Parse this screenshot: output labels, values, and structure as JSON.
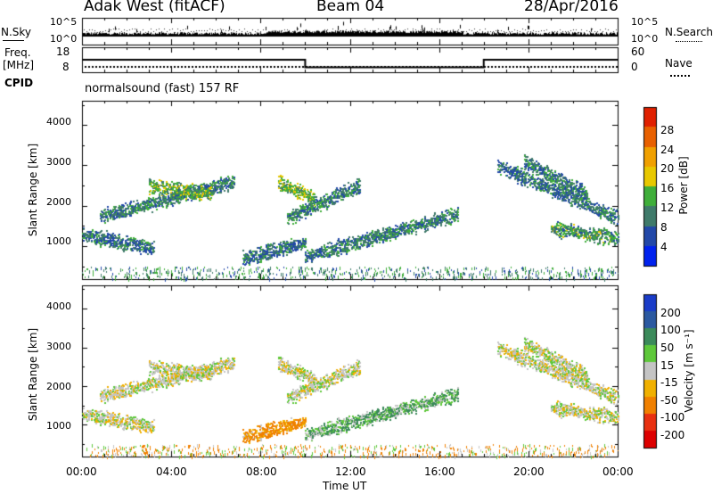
{
  "header": {
    "station": "Adak West (fitACF)",
    "beam": "Beam 04",
    "date": "28/Apr/2016"
  },
  "panels": {
    "nsky": {
      "label": "N.Sky",
      "ticks_left": [
        "10^5",
        "10^0"
      ],
      "ticks_right": [
        "10^5",
        "10^0"
      ],
      "right_label": "N.Search"
    },
    "freq": {
      "label_line1": "Freq.",
      "label_line2": "[MHz]",
      "label_line3": "CPID",
      "ticks_left": [
        "18",
        "8"
      ],
      "ticks_right": [
        "60",
        "0"
      ],
      "right_label": "Nave"
    },
    "cpid": {
      "text": "normalsound (fast) 157 RF"
    }
  },
  "x_axis": {
    "label": "Time UT",
    "ticks": [
      "00:00",
      "04:00",
      "08:00",
      "12:00",
      "16:00",
      "20:00",
      "00:00"
    ]
  },
  "y_axis": {
    "label": "Slant Range [km]",
    "ticks": [
      "1000",
      "2000",
      "3000",
      "4000"
    ]
  },
  "colorbars": {
    "power": {
      "label": "Power [dB]",
      "ticks": [
        "4",
        "8",
        "12",
        "16",
        "20",
        "24",
        "28"
      ],
      "colors": [
        "#0022ee",
        "#2248a8",
        "#3f7a6a",
        "#3fae3a",
        "#e8c800",
        "#f0a000",
        "#e86000",
        "#e02000"
      ]
    },
    "velocity": {
      "label": "Velocity [m s⁻¹]",
      "ticks": [
        "200",
        "100",
        "50",
        "15",
        "-15",
        "-50",
        "-100",
        "-200"
      ],
      "colors": [
        "#1a3cc8",
        "#2b59a0",
        "#3b8a5a",
        "#5ec83a",
        "#c4c4c4",
        "#f0b000",
        "#f08000",
        "#e83010",
        "#dd0000"
      ]
    }
  },
  "chart_data": [
    {
      "type": "line",
      "title": "Adak West (fitACF) Beam 04 28/Apr/2016",
      "x": [
        "00:00",
        "04:00",
        "08:00",
        "12:00",
        "16:00",
        "20:00",
        "00:00"
      ],
      "series": [
        {
          "name": "Freq. [MHz]",
          "values": [
            13,
            13,
            13,
            10,
            10,
            13,
            13
          ]
        }
      ],
      "ylabel": "Freq. [MHz]",
      "ylim": [
        8,
        18
      ]
    },
    {
      "type": "heatmap",
      "xlabel": "Time UT",
      "ylabel": "Slant Range [km]",
      "xlim": [
        0,
        24
      ],
      "ylim": [
        180,
        4600
      ],
      "legend": "Power [dB]",
      "regions": [
        {
          "start_hour": 0.0,
          "end_hour": 3.2,
          "range_start": 1300,
          "range_end": 950,
          "value": 9
        },
        {
          "start_hour": 0.8,
          "end_hour": 6.8,
          "range_start": 1750,
          "range_end": 2600,
          "value": 10
        },
        {
          "start_hour": 3.0,
          "end_hour": 5.8,
          "range_start": 2500,
          "range_end": 2300,
          "value": 14
        },
        {
          "start_hour": 7.2,
          "end_hour": 10.0,
          "range_start": 700,
          "range_end": 1100,
          "value": 9
        },
        {
          "start_hour": 8.8,
          "end_hour": 10.4,
          "range_start": 2600,
          "range_end": 2200,
          "value": 15
        },
        {
          "start_hour": 9.2,
          "end_hour": 12.4,
          "range_start": 1700,
          "range_end": 2500,
          "value": 10
        },
        {
          "start_hour": 10.0,
          "end_hour": 16.8,
          "range_start": 750,
          "range_end": 1800,
          "value": 10
        },
        {
          "start_hour": 18.6,
          "end_hour": 24.0,
          "range_start": 3000,
          "range_end": 1700,
          "value": 9
        },
        {
          "start_hour": 19.8,
          "end_hour": 22.6,
          "range_start": 3100,
          "range_end": 2300,
          "value": 9
        },
        {
          "start_hour": 21.0,
          "end_hour": 24.0,
          "range_start": 1450,
          "range_end": 1200,
          "value": 12
        }
      ]
    },
    {
      "type": "heatmap",
      "xlabel": "Time UT",
      "ylabel": "Slant Range [km]",
      "xlim": [
        0,
        24
      ],
      "ylim": [
        180,
        4600
      ],
      "legend": "Velocity [m s⁻¹]",
      "regions": [
        {
          "start_hour": 0.0,
          "end_hour": 3.2,
          "range_start": 1300,
          "range_end": 950,
          "value": 0
        },
        {
          "start_hour": 0.8,
          "end_hour": 6.8,
          "range_start": 1750,
          "range_end": 2600,
          "value": 0
        },
        {
          "start_hour": 3.0,
          "end_hour": 5.8,
          "range_start": 2500,
          "range_end": 2300,
          "value": 0
        },
        {
          "start_hour": 7.2,
          "end_hour": 10.0,
          "range_start": 700,
          "range_end": 1100,
          "value": -40
        },
        {
          "start_hour": 8.8,
          "end_hour": 10.4,
          "range_start": 2600,
          "range_end": 2200,
          "value": 0
        },
        {
          "start_hour": 9.2,
          "end_hour": 12.4,
          "range_start": 1700,
          "range_end": 2500,
          "value": 0
        },
        {
          "start_hour": 10.0,
          "end_hour": 16.8,
          "range_start": 750,
          "range_end": 1800,
          "value": 30
        },
        {
          "start_hour": 18.6,
          "end_hour": 24.0,
          "range_start": 3000,
          "range_end": 1700,
          "value": 0
        },
        {
          "start_hour": 19.8,
          "end_hour": 22.6,
          "range_start": 3100,
          "range_end": 2300,
          "value": 0
        },
        {
          "start_hour": 21.0,
          "end_hour": 24.0,
          "range_start": 1450,
          "range_end": 1200,
          "value": 0
        }
      ]
    }
  ]
}
